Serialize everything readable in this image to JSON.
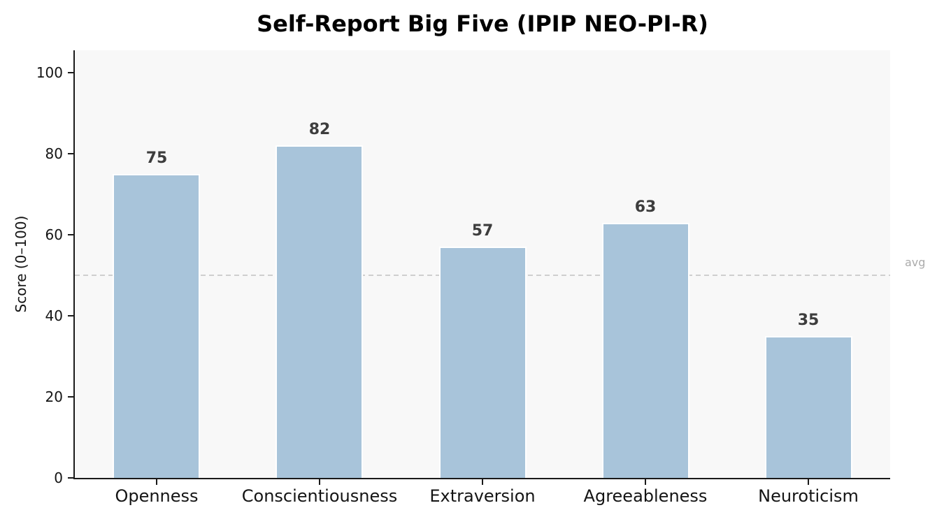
{
  "chart_data": {
    "type": "bar",
    "title": "Self-Report Big Five (IPIP NEO-PI-R)",
    "xlabel": "",
    "ylabel": "Score (0–100)",
    "categories": [
      "Openness",
      "Conscientiousness",
      "Extraversion",
      "Agreeableness",
      "Neuroticism"
    ],
    "values": [
      75,
      82,
      57,
      63,
      35
    ],
    "value_labels": [
      "75",
      "82",
      "57",
      "63",
      "35"
    ],
    "yticks": [
      0,
      20,
      40,
      60,
      80,
      100
    ],
    "ylim": [
      0,
      105
    ],
    "grid": false,
    "legend": "none",
    "reference_line": {
      "value": 50,
      "label": "avg"
    },
    "colors": {
      "bar_fill": "#a8c4da",
      "bar_edge": "#ffffff",
      "value_label": "#3d3d3d",
      "tick_label": "#141414",
      "title": "#000000",
      "plot_background": "#f8f8f8",
      "figure_background": "#ffffff",
      "spine": "#1a1a1a",
      "reference_line": "#cfcfcf",
      "reference_label": "#ababab"
    }
  }
}
